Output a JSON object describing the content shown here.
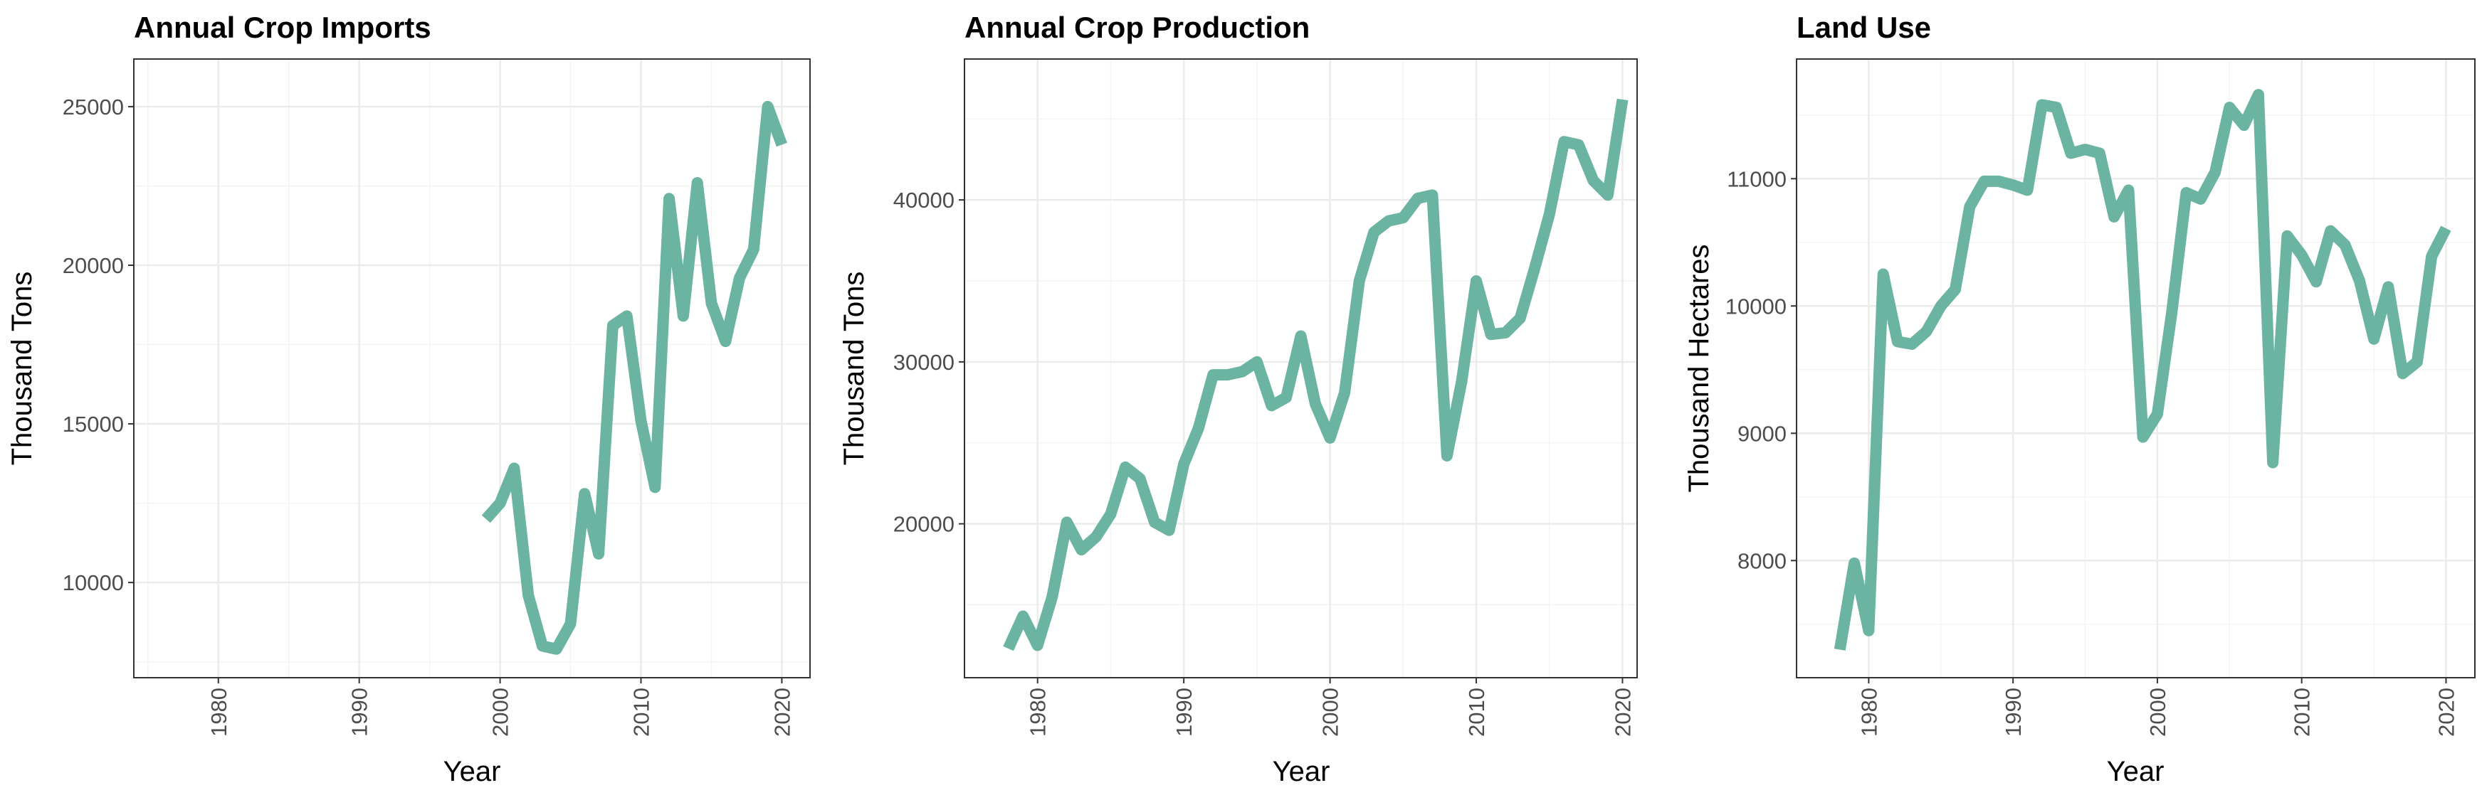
{
  "chart_data": [
    {
      "type": "line",
      "title": "Annual Crop Imports",
      "xlabel": "Year",
      "ylabel": "Thousand Tons",
      "xlim": [
        1974,
        2022
      ],
      "ylim": [
        7000,
        26500
      ],
      "x_ticks": [
        1980,
        1990,
        2000,
        2010,
        2020
      ],
      "x_tick_labels": [
        "1980",
        "1990",
        "2000",
        "2010",
        "2020"
      ],
      "y_ticks": [
        10000,
        15000,
        20000,
        25000
      ],
      "y_tick_labels": [
        "10000",
        "15000",
        "20000",
        "25000"
      ],
      "grid": true,
      "color": "#6ab4a1",
      "series": [
        {
          "name": "Annual Crop Imports",
          "x": [
            1999,
            2000,
            2001,
            2002,
            2003,
            2004,
            2005,
            2006,
            2007,
            2008,
            2009,
            2010,
            2011,
            2012,
            2013,
            2014,
            2015,
            2016,
            2017,
            2018,
            2019,
            2020
          ],
          "values": [
            12000,
            12500,
            13600,
            9600,
            8000,
            7900,
            8700,
            12800,
            10900,
            18100,
            18400,
            15100,
            13000,
            22100,
            18400,
            22600,
            18800,
            17600,
            19600,
            20500,
            25000,
            23800
          ]
        }
      ]
    },
    {
      "type": "line",
      "title": "Annual Crop Production",
      "xlabel": "Year",
      "ylabel": "Thousand Tons",
      "xlim": [
        1975,
        2021
      ],
      "ylim": [
        10500,
        48700
      ],
      "x_ticks": [
        1980,
        1990,
        2000,
        2010,
        2020
      ],
      "x_tick_labels": [
        "1980",
        "1990",
        "2000",
        "2010",
        "2020"
      ],
      "y_ticks": [
        20000,
        30000,
        40000
      ],
      "y_tick_labels": [
        "20000",
        "30000",
        "40000"
      ],
      "grid": true,
      "color": "#6ab4a1",
      "series": [
        {
          "name": "Annual Crop Production",
          "x": [
            1978,
            1979,
            1980,
            1981,
            1982,
            1983,
            1984,
            1985,
            1986,
            1987,
            1988,
            1989,
            1990,
            1991,
            1992,
            1993,
            1994,
            1995,
            1996,
            1997,
            1998,
            1999,
            2000,
            2001,
            2002,
            2003,
            2004,
            2005,
            2006,
            2007,
            2008,
            2009,
            2010,
            2011,
            2012,
            2013,
            2014,
            2015,
            2016,
            2017,
            2018,
            2019,
            2020
          ],
          "values": [
            12300,
            14300,
            12500,
            15500,
            20100,
            18400,
            19200,
            20600,
            23500,
            22800,
            20100,
            19600,
            23700,
            25900,
            29200,
            29200,
            29400,
            30000,
            27300,
            27800,
            31600,
            27400,
            25300,
            28100,
            35000,
            38000,
            38700,
            38900,
            40100,
            40300,
            24200,
            28800,
            35000,
            31700,
            31800,
            32700,
            35800,
            39100,
            43600,
            43400,
            41200,
            40300,
            46200
          ]
        }
      ]
    },
    {
      "type": "line",
      "title": "Land Use",
      "xlabel": "Year",
      "ylabel": "Thousand Hectares",
      "xlim": [
        1975,
        2022
      ],
      "ylim": [
        7080,
        11940
      ],
      "x_ticks": [
        1980,
        1990,
        2000,
        2010,
        2020
      ],
      "x_tick_labels": [
        "1980",
        "1990",
        "2000",
        "2010",
        "2020"
      ],
      "y_ticks": [
        8000,
        9000,
        10000,
        11000
      ],
      "y_tick_labels": [
        "8000",
        "9000",
        "10000",
        "11000"
      ],
      "grid": true,
      "color": "#6ab4a1",
      "series": [
        {
          "name": "Land Use",
          "x": [
            1978,
            1979,
            1980,
            1981,
            1982,
            1983,
            1984,
            1985,
            1986,
            1987,
            1988,
            1989,
            1990,
            1991,
            1992,
            1993,
            1994,
            1995,
            1996,
            1997,
            1998,
            1999,
            2000,
            2001,
            2002,
            2003,
            2004,
            2005,
            2006,
            2007,
            2008,
            2009,
            2010,
            2011,
            2012,
            2013,
            2014,
            2015,
            2016,
            2017,
            2018,
            2019,
            2020
          ],
          "values": [
            7300,
            7980,
            7450,
            10250,
            9720,
            9700,
            9800,
            10000,
            10130,
            10780,
            10980,
            10980,
            10950,
            10910,
            11580,
            11560,
            11200,
            11230,
            11200,
            10700,
            10910,
            8970,
            9150,
            9950,
            10890,
            10840,
            11050,
            11560,
            11420,
            11660,
            8770,
            10550,
            10400,
            10190,
            10590,
            10480,
            10200,
            9740,
            10150,
            9470,
            9560,
            10390,
            10610
          ]
        }
      ]
    }
  ]
}
